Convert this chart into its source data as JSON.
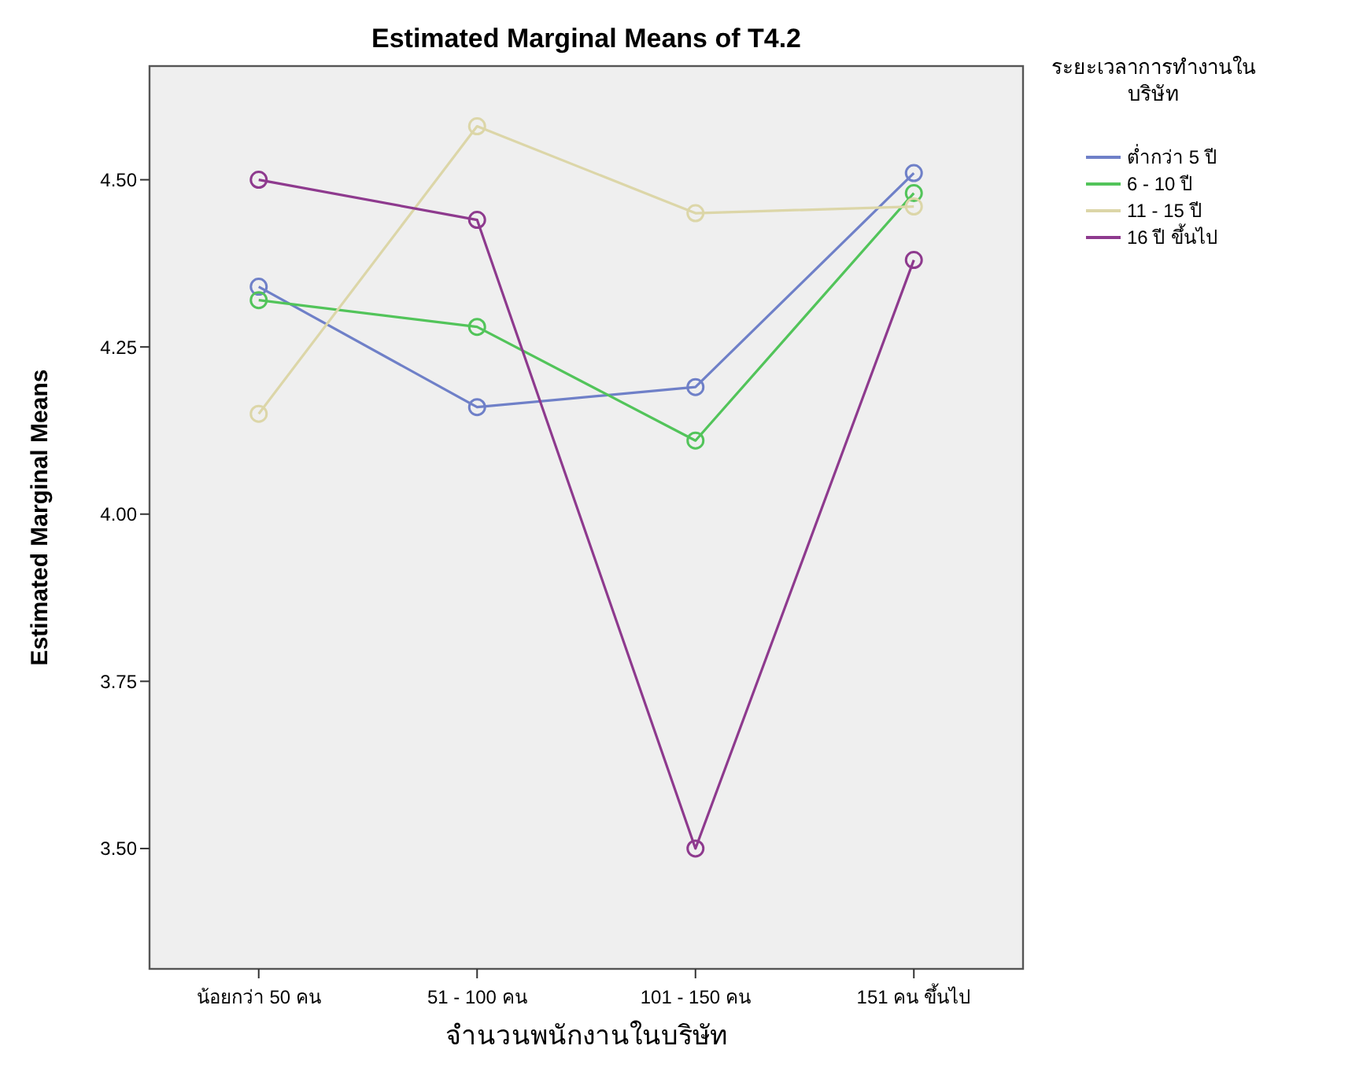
{
  "chart_data": {
    "type": "line",
    "title": "Estimated Marginal Means of T4.2",
    "xlabel": "จำนวนพนักงานในบริษัท",
    "ylabel": "Estimated Marginal Means",
    "legend_title": "ระยะเวลาการทำงานในบริษัท",
    "categories": [
      "น้อยกว่า 50 คน",
      "51 - 100 คน",
      "101 - 150 คน",
      "151 คน ขึ้นไป"
    ],
    "series": [
      {
        "name": "ต่ำกว่า 5 ปี",
        "color": "#6f80c8",
        "values": [
          4.34,
          4.16,
          4.19,
          4.51
        ]
      },
      {
        "name": "6 - 10 ปี",
        "color": "#52c45a",
        "values": [
          4.32,
          4.28,
          4.11,
          4.48
        ]
      },
      {
        "name": "11 - 15 ปี",
        "color": "#dcd6a8",
        "values": [
          4.15,
          4.58,
          4.45,
          4.46
        ]
      },
      {
        "name": "16 ปี ขึ้นไป",
        "color": "#8e3a8e",
        "values": [
          4.5,
          4.44,
          3.5,
          4.38
        ]
      }
    ],
    "ylim": [
      3.32,
      4.67
    ],
    "yticks": [
      {
        "value": 3.5,
        "label": "3.50"
      },
      {
        "value": 3.75,
        "label": "3.75"
      },
      {
        "value": 4,
        "label": "4.00"
      },
      {
        "value": 4.25,
        "label": "4.25"
      },
      {
        "value": 4.5,
        "label": "4.50"
      }
    ],
    "grid": false,
    "legend": "right",
    "marker": "circle",
    "line_style": "solid"
  }
}
